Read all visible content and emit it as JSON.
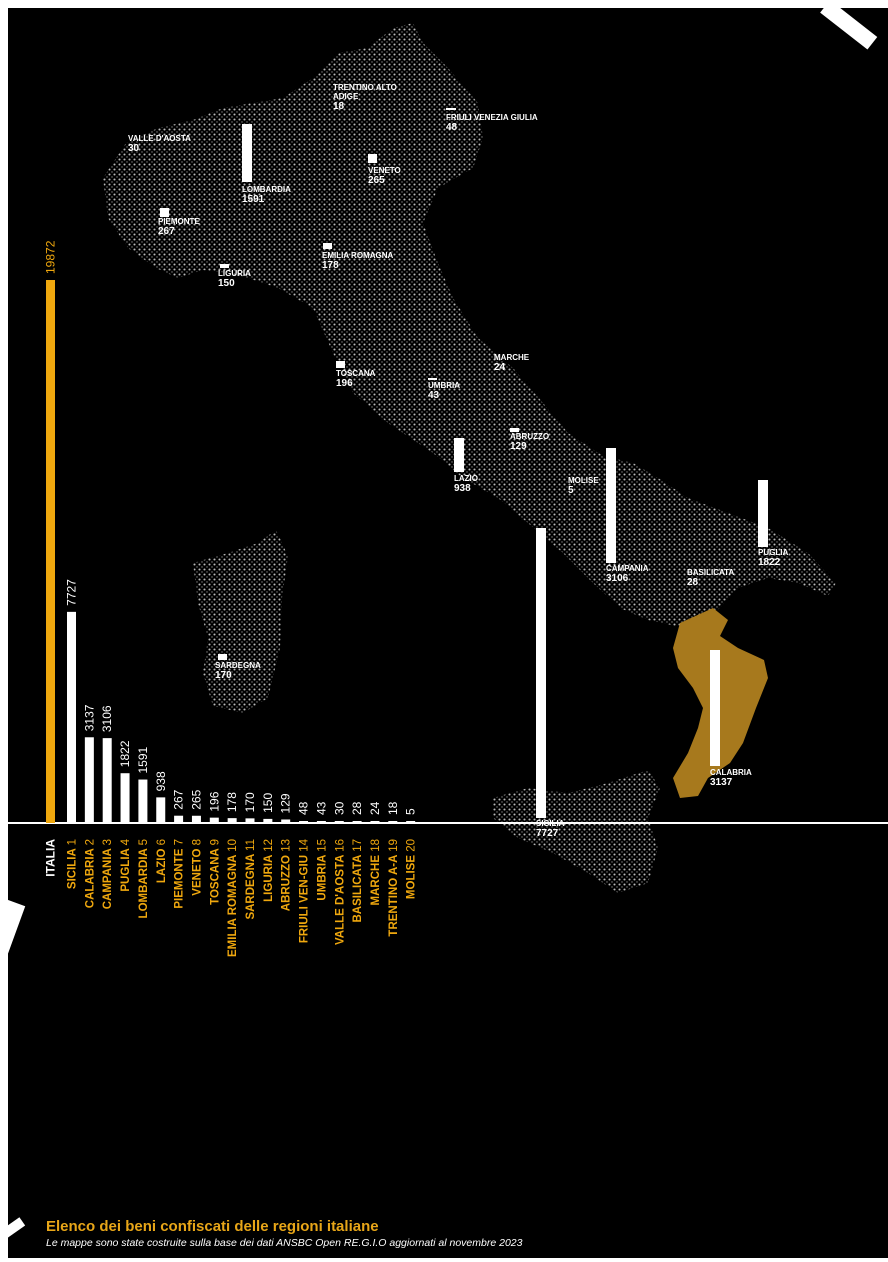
{
  "title": "Elenco dei beni confiscati delle regioni italiane",
  "subtitle": "Le mappe sono state costruite sulla base dei dati ANSBC Open RE.G.I.O aggiornati al novembre 2023",
  "colors": {
    "background": "#000000",
    "accent": "#f0a80e",
    "calabria_fill": "#a7791d",
    "bar": "#ffffff",
    "map_dots": "#d9d9d9"
  },
  "chart_data": {
    "type": "bar",
    "orientation": "vertical bars, labels rotated",
    "total": {
      "label": "ITALIA",
      "value": 19872
    },
    "categories": [
      "SICILIA",
      "CALABRIA",
      "CAMPANIA",
      "PUGLIA",
      "LOMBARDIA",
      "LAZIO",
      "PIEMONTE",
      "VENETO",
      "TOSCANA",
      "EMILIA ROMAGNA",
      "SARDEGNA",
      "LIGURIA",
      "ABRUZZO",
      "FRIULI VEN-GIU",
      "UMBRIA",
      "VALLE D'AOSTA",
      "BASILICATA",
      "MARCHE",
      "TRENTINO A-A",
      "MOLISE"
    ],
    "ranks": [
      "1",
      "2",
      "3",
      "4",
      "5",
      "6",
      "7",
      "8",
      "9",
      "10",
      "11",
      "12",
      "13",
      "14",
      "15",
      "16",
      "17",
      "18",
      "19",
      "20"
    ],
    "values": [
      7727,
      3137,
      3106,
      1822,
      1591,
      938,
      267,
      265,
      196,
      178,
      170,
      150,
      129,
      48,
      43,
      30,
      28,
      24,
      18,
      5
    ]
  },
  "map_labels": [
    {
      "name": "TRENTINO ALTO",
      "name2": "ADIGE",
      "value": 18
    },
    {
      "name": "FRIULI VENEZIA GIULIA",
      "value": 48
    },
    {
      "name": "VALLE D'AOSTA",
      "value": 30
    },
    {
      "name": "LOMBARDIA",
      "value": 1591
    },
    {
      "name": "VENETO",
      "value": 265
    },
    {
      "name": "PIEMONTE",
      "value": 267
    },
    {
      "name": "EMILIA ROMAGNA",
      "value": 178
    },
    {
      "name": "LIGURIA",
      "value": 150
    },
    {
      "name": "MARCHE",
      "value": 24
    },
    {
      "name": "TOSCANA",
      "value": 196
    },
    {
      "name": "UMBRIA",
      "value": 43
    },
    {
      "name": "ABRUZZO",
      "value": 129
    },
    {
      "name": "LAZIO",
      "value": 938
    },
    {
      "name": "MOLISE",
      "value": 5
    },
    {
      "name": "CAMPANIA",
      "value": 3106
    },
    {
      "name": "PUGLIA",
      "value": 1822
    },
    {
      "name": "BASILICATA",
      "value": 28
    },
    {
      "name": "SARDEGNA",
      "value": 170
    },
    {
      "name": "CALABRIA",
      "value": 3137
    },
    {
      "name": "SICILIA",
      "value": 7727
    }
  ]
}
